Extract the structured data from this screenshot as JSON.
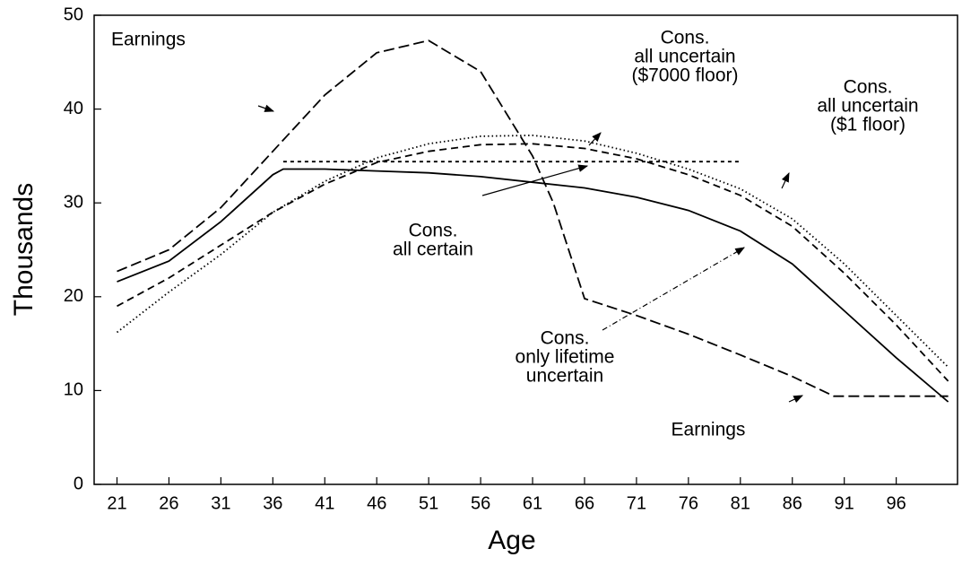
{
  "chart_data": {
    "type": "line",
    "x_label": "Age",
    "y_label": "Thousands",
    "xlim": [
      18.8,
      101.9
    ],
    "ylim": [
      0,
      50
    ],
    "xticks": [
      21,
      26,
      31,
      36,
      41,
      46,
      51,
      56,
      61,
      66,
      71,
      76,
      81,
      86,
      91,
      96
    ],
    "yticks": [
      0,
      10,
      20,
      30,
      40,
      50
    ],
    "grid": false,
    "series": [
      {
        "color": "#000000",
        "line_style": "dashed",
        "x": [
          21,
          26,
          31,
          36,
          41,
          46,
          51,
          56,
          61,
          63,
          66,
          71,
          76,
          81,
          86,
          90,
          101
        ],
        "values": [
          22.7,
          25,
          29.5,
          35.5,
          41.5,
          46,
          47.3,
          44,
          35,
          30,
          19.8,
          18,
          16,
          13.8,
          11.5,
          9.4,
          9.4
        ]
      },
      {
        "color": "#000000",
        "line_style": "solid",
        "x": [
          21,
          26,
          31,
          36,
          37,
          41,
          46,
          51,
          56,
          61,
          66,
          71,
          76,
          81,
          86,
          91,
          96,
          101
        ],
        "values": [
          21.6,
          23.8,
          28,
          33,
          33.6,
          33.6,
          33.4,
          33.2,
          32.8,
          32.2,
          31.6,
          30.6,
          29.2,
          27,
          23.5,
          18.5,
          13.5,
          8.8
        ]
      },
      {
        "color": "#000000",
        "line_style": "short-dash",
        "x": [
          37,
          46,
          56,
          66,
          76,
          81
        ],
        "values": [
          34.4,
          34.4,
          34.4,
          34.4,
          34.4,
          34.4
        ]
      },
      {
        "color": "#000000",
        "line_style": "medium-dash",
        "x": [
          21,
          26,
          31,
          36,
          41,
          46,
          51,
          56,
          61,
          66,
          71,
          76,
          81,
          86,
          91,
          96,
          101
        ],
        "values": [
          19,
          22,
          25.5,
          29,
          32,
          34.3,
          35.5,
          36.2,
          36.3,
          35.8,
          34.7,
          33,
          30.8,
          27.5,
          22.5,
          17,
          11
        ]
      },
      {
        "color": "#000000",
        "line_style": "dotted",
        "x": [
          21,
          26,
          31,
          36,
          41,
          46,
          51,
          56,
          61,
          66,
          71,
          76,
          81,
          86,
          91,
          96,
          101
        ],
        "values": [
          16.2,
          20.5,
          24.5,
          29,
          32.3,
          34.8,
          36.3,
          37.1,
          37.2,
          36.6,
          35.3,
          33.6,
          31.5,
          28.3,
          23.5,
          18,
          12.5
        ]
      }
    ],
    "annotations": [
      {
        "lines": [
          "Earnings"
        ]
      },
      {
        "lines": [
          "Earnings"
        ]
      },
      {
        "lines": [
          "Cons.",
          "all certain"
        ]
      },
      {
        "lines": [
          "Cons.",
          "only lifetime",
          "uncertain"
        ]
      },
      {
        "lines": [
          "Cons.",
          "all uncertain",
          "($7000 floor)"
        ]
      },
      {
        "lines": [
          "Cons.",
          "all uncertain",
          "($1 floor)"
        ]
      }
    ]
  }
}
